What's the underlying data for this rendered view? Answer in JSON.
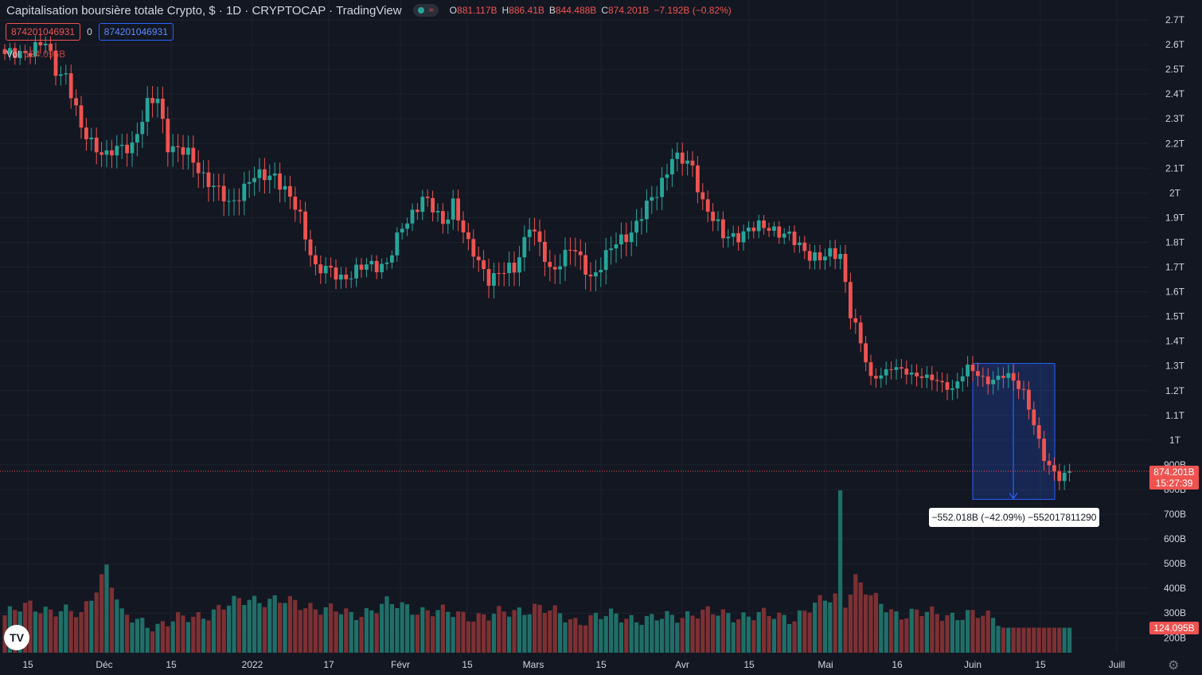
{
  "header": {
    "title": "Capitalisation boursière totale Crypto, $ · 1D · CRYPTOCAP · TradingView",
    "ohlc": [
      {
        "key": "O",
        "value": "881.117B"
      },
      {
        "key": "H",
        "value": "886.41B"
      },
      {
        "key": "B",
        "value": "844.488B"
      },
      {
        "key": "C",
        "value": "874.201B"
      }
    ],
    "change": "−7.192B (−0.82%)"
  },
  "legend": {
    "value_sell": "874201046931",
    "spread": "0",
    "value_buy": "874201046931"
  },
  "volume": {
    "label": "Vol",
    "value": "124.095B"
  },
  "price_label": {
    "price": "874.201B",
    "countdown": "15:27:39"
  },
  "volume_label": "124.095B",
  "measure_label": "−552.018B (−42.09%) −552017811290",
  "colors": {
    "up": "#26a69a",
    "down": "#ef5350",
    "background": "#131722",
    "grid": "#1e222d",
    "measure": "#2962ff"
  },
  "logo": "tradingview-logo",
  "chart_data": {
    "type": "candlestick",
    "title": "Capitalisation boursière totale Crypto, $",
    "interval": "1D",
    "y_axis": {
      "position": "right",
      "scale": "linear",
      "ylim": [
        0.78,
        2.72
      ],
      "ticks": [
        "2.7T",
        "2.6T",
        "2.5T",
        "2.4T",
        "2.3T",
        "2.2T",
        "2.1T",
        "2T",
        "1.9T",
        "1.8T",
        "1.7T",
        "1.6T",
        "1.5T",
        "1.4T",
        "1.3T",
        "1.2T",
        "1.1T",
        "1T",
        "900B",
        "800B",
        "700B",
        "600B",
        "500B",
        "400B",
        "300B",
        "200B"
      ]
    },
    "x_axis": {
      "ticks": [
        "15",
        "Déc",
        "15",
        "2022",
        "17",
        "Févr",
        "15",
        "Mars",
        "15",
        "Avr",
        "15",
        "Mai",
        "16",
        "Juin",
        "15",
        "Juill"
      ]
    },
    "volume_axis": {
      "unit": "B",
      "ticks": [
        200,
        300,
        400,
        500,
        600,
        700,
        800
      ]
    },
    "anchors": [
      [
        0,
        2.55
      ],
      [
        8,
        2.6
      ],
      [
        10,
        2.5
      ],
      [
        12,
        2.48
      ],
      [
        15,
        2.25
      ],
      [
        20,
        2.15
      ],
      [
        25,
        2.2
      ],
      [
        28,
        2.35
      ],
      [
        30,
        2.38
      ],
      [
        32,
        2.2
      ],
      [
        36,
        2.15
      ],
      [
        40,
        2.05
      ],
      [
        44,
        1.95
      ],
      [
        48,
        2.05
      ],
      [
        53,
        2.08
      ],
      [
        58,
        1.9
      ],
      [
        61,
        1.7
      ],
      [
        66,
        1.66
      ],
      [
        71,
        1.7
      ],
      [
        75,
        1.72
      ],
      [
        78,
        1.85
      ],
      [
        82,
        1.99
      ],
      [
        86,
        1.87
      ],
      [
        88,
        1.97
      ],
      [
        91,
        1.78
      ],
      [
        95,
        1.66
      ],
      [
        100,
        1.69
      ],
      [
        103,
        1.88
      ],
      [
        107,
        1.68
      ],
      [
        111,
        1.78
      ],
      [
        115,
        1.66
      ],
      [
        119,
        1.77
      ],
      [
        123,
        1.85
      ],
      [
        128,
        2.0
      ],
      [
        131,
        2.15
      ],
      [
        135,
        2.1
      ],
      [
        137,
        1.97
      ],
      [
        141,
        1.82
      ],
      [
        145,
        1.84
      ],
      [
        150,
        1.87
      ],
      [
        155,
        1.8
      ],
      [
        160,
        1.73
      ],
      [
        164,
        1.76
      ],
      [
        166,
        1.52
      ],
      [
        170,
        1.25
      ],
      [
        174,
        1.29
      ],
      [
        180,
        1.26
      ],
      [
        186,
        1.21
      ],
      [
        189,
        1.29
      ],
      [
        193,
        1.24
      ],
      [
        197,
        1.26
      ],
      [
        200,
        1.2
      ],
      [
        204,
        0.92
      ],
      [
        207,
        0.85
      ],
      [
        209,
        0.874
      ]
    ],
    "volume_anchors": [
      [
        0,
        290
      ],
      [
        5,
        330
      ],
      [
        15,
        290
      ],
      [
        20,
        490
      ],
      [
        23,
        285
      ],
      [
        30,
        250
      ],
      [
        40,
        300
      ],
      [
        48,
        360
      ],
      [
        60,
        330
      ],
      [
        68,
        290
      ],
      [
        75,
        335
      ],
      [
        86,
        300
      ],
      [
        95,
        285
      ],
      [
        104,
        325
      ],
      [
        112,
        270
      ],
      [
        120,
        290
      ],
      [
        127,
        270
      ],
      [
        135,
        300
      ],
      [
        145,
        290
      ],
      [
        155,
        285
      ],
      [
        163,
        370
      ],
      [
        164,
        795
      ],
      [
        165,
        350
      ],
      [
        167,
        440
      ],
      [
        170,
        360
      ],
      [
        175,
        300
      ],
      [
        190,
        290
      ],
      [
        200,
        265
      ],
      [
        209,
        240
      ]
    ],
    "measure": {
      "from": "1.31T",
      "to": "760B",
      "change": "−552.018B (−42.09%)"
    },
    "last": {
      "price": "874.201B",
      "volume": "124.095B"
    }
  }
}
